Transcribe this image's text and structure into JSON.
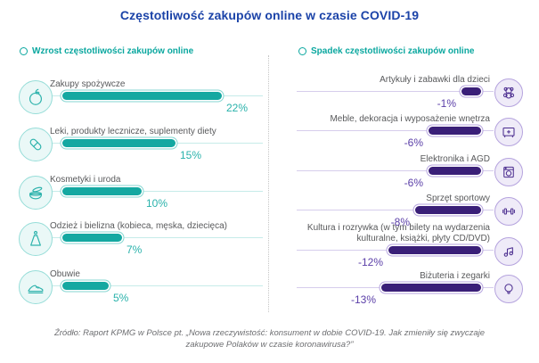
{
  "title": "Częstotliwość zakupów online w czasie COVID-19",
  "increase": {
    "header": "Wzrost częstotliwości zakupów online",
    "accent_color": "#14a8a1",
    "items": [
      {
        "label": "Zakupy spożywcze",
        "value": 22,
        "value_label": "22%",
        "icon": "apple-icon"
      },
      {
        "label": "Leki, produkty lecznicze, suplementy diety",
        "value": 15,
        "value_label": "15%",
        "icon": "pill-icon"
      },
      {
        "label": "Kosmetyki i uroda",
        "value": 10,
        "value_label": "10%",
        "icon": "cosmetics-icon"
      },
      {
        "label": "Odzież i bielizna (kobieca, męska, dziecięca)",
        "value": 7,
        "value_label": "7%",
        "icon": "dress-icon"
      },
      {
        "label": "Obuwie",
        "value": 5,
        "value_label": "5%",
        "icon": "sneaker-icon"
      }
    ]
  },
  "decrease": {
    "header": "Spadek częstotliwości zakupów online",
    "accent_color": "#3a1f78",
    "items": [
      {
        "label": "Artykuły i zabawki dla dzieci",
        "value": -1,
        "value_label": "-1%",
        "icon": "teddy-bear-icon"
      },
      {
        "label": "Meble, dekoracja i wyposażenie wnętrza",
        "value": -6,
        "value_label": "-6%",
        "icon": "cabinet-icon"
      },
      {
        "label": "Elektronika i AGD",
        "value": -6,
        "value_label": "-6%",
        "icon": "washing-machine-icon"
      },
      {
        "label": "Sprzęt sportowy",
        "value": -8,
        "value_label": "-8%",
        "icon": "dumbbell-icon"
      },
      {
        "label": "Kultura i rozrywka (w tym bilety na wydarzenia kulturalne, książki, płyty CD/DVD)",
        "value": -12,
        "value_label": "-12%",
        "icon": "music-note-icon"
      },
      {
        "label": "Biżuteria i zegarki",
        "value": -13,
        "value_label": "-13%",
        "icon": "necklace-icon"
      }
    ]
  },
  "source": {
    "line1": "Źródło: Raport KPMG w Polsce pt. „Nowa rzeczywistość: konsument w dobie COVID-19. Jak zmieniły się zwyczaje",
    "line2": "zakupowe Polaków w czasie koronawirusa?”"
  },
  "chart_data": [
    {
      "type": "bar",
      "orientation": "horizontal",
      "title": "Wzrost częstotliwości zakupów online",
      "unit": "%",
      "categories": [
        "Zakupy spożywcze",
        "Leki, produkty lecznicze, suplementy diety",
        "Kosmetyki i uroda",
        "Odzież i bielizna (kobieca, męska, dziecięca)",
        "Obuwie"
      ],
      "values": [
        22,
        15,
        10,
        7,
        5
      ],
      "bar_color": "#14a8a1"
    },
    {
      "type": "bar",
      "orientation": "horizontal",
      "title": "Spadek częstotliwości zakupów online",
      "unit": "%",
      "categories": [
        "Artykuły i zabawki dla dzieci",
        "Meble, dekoracja i wyposażenie wnętrza",
        "Elektronika i AGD",
        "Sprzęt sportowy",
        "Kultura i rozrywka (w tym bilety na wydarzenia kulturalne, książki, płyty CD/DVD)",
        "Biżuteria i zegarki"
      ],
      "values": [
        -1,
        -6,
        -6,
        -8,
        -12,
        -13
      ],
      "bar_color": "#3a1f78"
    }
  ],
  "colors": {
    "title_blue": "#1b43a8",
    "teal": "#14a8a1",
    "purple": "#3a1f78",
    "label_gray": "#58595b",
    "footer_gray": "#6d6e71"
  }
}
